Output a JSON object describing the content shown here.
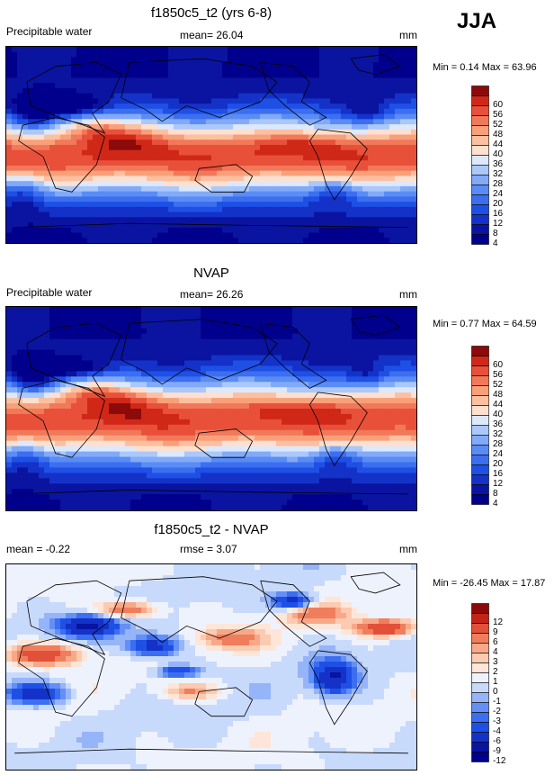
{
  "season": "JJA",
  "panels": [
    {
      "id": "model",
      "title": "f1850c5_t2 (yrs 6-8)",
      "left_label": "Precipitable water",
      "mid_label": "mean=  26.04",
      "units": "mm",
      "minmax": "Min =  0.14 Max =  63.96",
      "kind": "field"
    },
    {
      "id": "obs",
      "title": "NVAP",
      "left_label": "Precipitable water",
      "mid_label": "mean=  26.26",
      "units": "mm",
      "minmax": "Min =  0.77 Max =  64.59",
      "kind": "field"
    },
    {
      "id": "diff",
      "title": "f1850c5_t2 - NVAP",
      "left_label": "mean =  -0.22",
      "mid_label": "rmse =   3.07",
      "units": "mm",
      "minmax": "Min = -26.45 Max =  17.87",
      "kind": "diff"
    }
  ],
  "chart_data": [
    {
      "type": "heatmap",
      "title": "f1850c5_t2 (yrs 6-8)",
      "variable": "Precipitable water",
      "units": "mm",
      "mean": 26.04,
      "min": 0.14,
      "max": 63.96,
      "colorbar_levels": [
        4,
        8,
        12,
        16,
        20,
        24,
        28,
        32,
        36,
        40,
        44,
        48,
        52,
        56,
        60
      ]
    },
    {
      "type": "heatmap",
      "title": "NVAP",
      "variable": "Precipitable water",
      "units": "mm",
      "mean": 26.26,
      "min": 0.77,
      "max": 64.59,
      "colorbar_levels": [
        4,
        8,
        12,
        16,
        20,
        24,
        28,
        32,
        36,
        40,
        44,
        48,
        52,
        56,
        60
      ]
    },
    {
      "type": "heatmap",
      "title": "f1850c5_t2 - NVAP",
      "units": "mm",
      "mean": -0.22,
      "rmse": 3.07,
      "min": -26.45,
      "max": 17.87,
      "colorbar_levels": [
        -12,
        -9,
        -6,
        -4,
        -3,
        -2,
        -1,
        0,
        1,
        2,
        3,
        4,
        6,
        9,
        12
      ]
    }
  ],
  "colors": {
    "field": [
      "#00008c",
      "#0a14a0",
      "#1432c8",
      "#1e50e6",
      "#3c6ef0",
      "#5a8cf5",
      "#82aaf8",
      "#aac8fa",
      "#dce8fc",
      "#fde0cf",
      "#fcc0a0",
      "#f8a07a",
      "#f2785a",
      "#e8503a",
      "#d02818",
      "#8c0a0a"
    ],
    "diff": [
      "#00008c",
      "#0a14a0",
      "#1432c8",
      "#1e50e6",
      "#3c6ef0",
      "#6490f5",
      "#96b4f8",
      "#c8dafc",
      "#eef2fc",
      "#fde6d8",
      "#fbcab0",
      "#f8a886",
      "#f07e5c",
      "#e2503a",
      "#c42416",
      "#8c0a0a"
    ]
  }
}
